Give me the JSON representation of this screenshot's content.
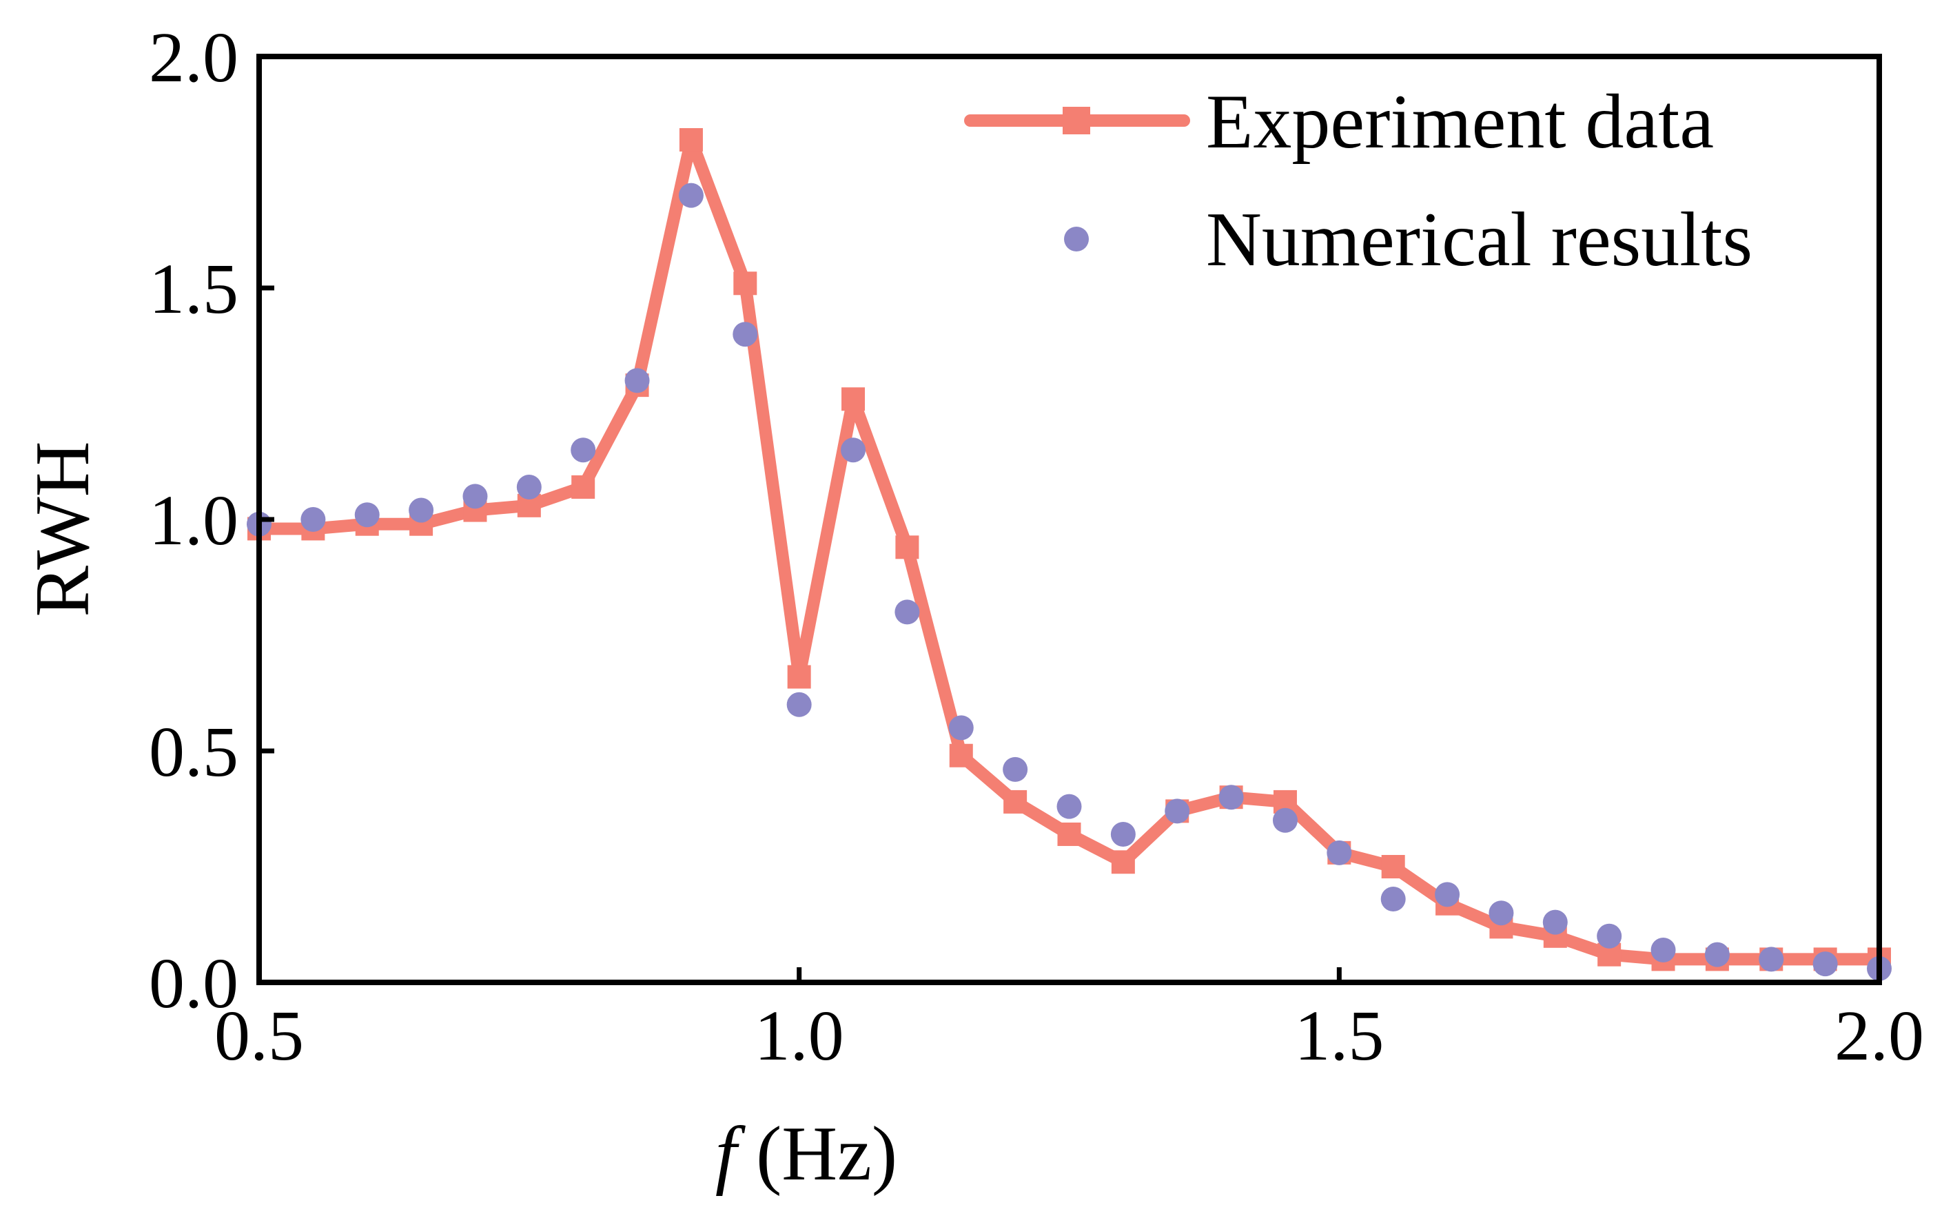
{
  "chart_data": {
    "type": "line",
    "title": "",
    "xlabel": {
      "italic": "f",
      "rest": " (Hz)"
    },
    "ylabel": "RWH",
    "xlim": [
      0.5,
      2.0
    ],
    "ylim": [
      0.0,
      2.0
    ],
    "xticks": [
      0.5,
      1.0,
      1.5,
      2.0
    ],
    "yticks": [
      0.0,
      0.5,
      1.0,
      1.5,
      2.0
    ],
    "xtick_labels": [
      "0.5",
      "1.0",
      "1.5",
      "2.0"
    ],
    "ytick_labels": [
      "0.0",
      "0.5",
      "1.0",
      "1.5",
      "2.0"
    ],
    "grid": false,
    "legend_position": "top-right",
    "series": [
      {
        "name": "Experiment data",
        "style": "line-square",
        "color": "#F47F72",
        "x": [
          0.5,
          0.55,
          0.6,
          0.65,
          0.7,
          0.75,
          0.8,
          0.85,
          0.9,
          0.95,
          1.0,
          1.05,
          1.1,
          1.15,
          1.2,
          1.25,
          1.3,
          1.35,
          1.4,
          1.45,
          1.5,
          1.55,
          1.6,
          1.65,
          1.7,
          1.75,
          1.8,
          1.85,
          1.9,
          1.95,
          2.0
        ],
        "y": [
          0.98,
          0.98,
          0.99,
          0.99,
          1.02,
          1.03,
          1.07,
          1.29,
          1.82,
          1.51,
          0.66,
          1.26,
          0.94,
          0.49,
          0.39,
          0.32,
          0.26,
          0.37,
          0.4,
          0.39,
          0.28,
          0.25,
          0.17,
          0.12,
          0.1,
          0.06,
          0.05,
          0.05,
          0.05,
          0.05,
          0.05
        ]
      },
      {
        "name": "Numerical results",
        "style": "dot",
        "color": "#8B87C6",
        "x": [
          0.5,
          0.55,
          0.6,
          0.65,
          0.7,
          0.75,
          0.8,
          0.85,
          0.9,
          0.95,
          1.0,
          1.05,
          1.1,
          1.15,
          1.2,
          1.25,
          1.3,
          1.35,
          1.4,
          1.45,
          1.5,
          1.55,
          1.6,
          1.65,
          1.7,
          1.75,
          1.8,
          1.85,
          1.9,
          1.95,
          2.0
        ],
        "y": [
          0.99,
          1.0,
          1.01,
          1.02,
          1.05,
          1.07,
          1.15,
          1.3,
          1.7,
          1.4,
          0.6,
          1.15,
          0.8,
          0.55,
          0.46,
          0.38,
          0.32,
          0.37,
          0.4,
          0.35,
          0.28,
          0.18,
          0.19,
          0.15,
          0.13,
          0.1,
          0.07,
          0.06,
          0.05,
          0.04,
          0.03
        ]
      }
    ]
  }
}
